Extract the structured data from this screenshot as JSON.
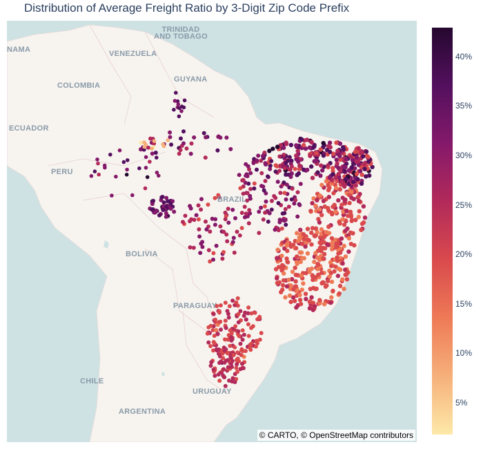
{
  "title": "Distribution of Average Freight Ratio by 3-Digit Zip Code Prefix",
  "map": {
    "basemap": "carto-positron",
    "ocean_color": "#cfe2e3",
    "land_color": "#f7f4ef",
    "country_labels": [
      {
        "id": "trinidad",
        "text": "TRINIDAD\nAND TOBAGO"
      },
      {
        "id": "panama",
        "text": "NAMA"
      },
      {
        "id": "venezuela",
        "text": "VENEZUELA"
      },
      {
        "id": "guyana",
        "text": "GUYANA"
      },
      {
        "id": "colombia",
        "text": "COLOMBIA"
      },
      {
        "id": "ecuador",
        "text": "ECUADOR"
      },
      {
        "id": "peru",
        "text": "PERU"
      },
      {
        "id": "brazil",
        "text": "BRAZIL"
      },
      {
        "id": "bolivia",
        "text": "BOLIVIA"
      },
      {
        "id": "paraguay",
        "text": "PARAGUAY"
      },
      {
        "id": "chile",
        "text": "CHILE"
      },
      {
        "id": "uruguay",
        "text": "URUGUAY"
      },
      {
        "id": "argentina",
        "text": "ARGENTINA"
      }
    ],
    "attribution": "© CARTO, © OpenStreetMap contributors"
  },
  "colorbar": {
    "colorscale": [
      "#fde9a9",
      "#f6b07a",
      "#ee7a56",
      "#d94a4d",
      "#b22a5a",
      "#85196a",
      "#53105e",
      "#25082f"
    ],
    "min": 0.025,
    "max": 0.43,
    "ticks": [
      "5%",
      "10%",
      "15%",
      "20%",
      "25%",
      "30%",
      "35%",
      "40%"
    ]
  }
}
